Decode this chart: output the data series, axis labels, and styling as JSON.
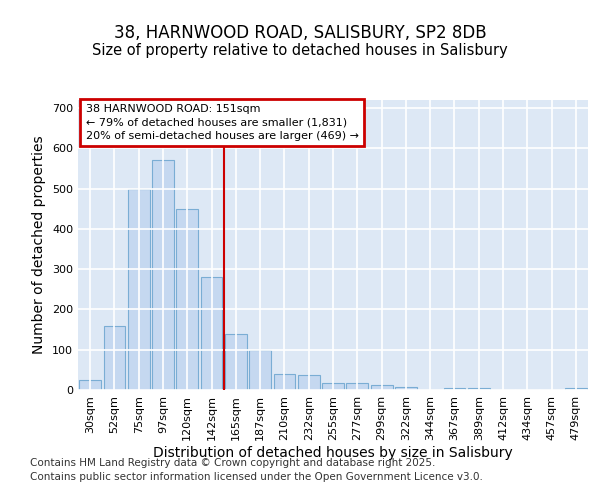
{
  "title_line1": "38, HARNWOOD ROAD, SALISBURY, SP2 8DB",
  "title_line2": "Size of property relative to detached houses in Salisbury",
  "xlabel": "Distribution of detached houses by size in Salisbury",
  "ylabel": "Number of detached properties",
  "categories": [
    "30sqm",
    "52sqm",
    "75sqm",
    "97sqm",
    "120sqm",
    "142sqm",
    "165sqm",
    "187sqm",
    "210sqm",
    "232sqm",
    "255sqm",
    "277sqm",
    "299sqm",
    "322sqm",
    "344sqm",
    "367sqm",
    "389sqm",
    "412sqm",
    "434sqm",
    "457sqm",
    "479sqm"
  ],
  "values": [
    25,
    160,
    500,
    570,
    450,
    280,
    140,
    100,
    40,
    38,
    17,
    17,
    13,
    8,
    0,
    6,
    5,
    0,
    0,
    0,
    5
  ],
  "bar_color": "#c5d8f0",
  "bar_edge_color": "#7aadd4",
  "vline_x": 5.5,
  "vline_color": "#cc0000",
  "annotation_text": "38 HARNWOOD ROAD: 151sqm\n← 79% of detached houses are smaller (1,831)\n20% of semi-detached houses are larger (469) →",
  "annotation_box_color": "#cc0000",
  "background_color": "#dde8f5",
  "grid_color": "#ffffff",
  "fig_background": "#ffffff",
  "ylim": [
    0,
    720
  ],
  "yticks": [
    0,
    100,
    200,
    300,
    400,
    500,
    600,
    700
  ],
  "footer_line1": "Contains HM Land Registry data © Crown copyright and database right 2025.",
  "footer_line2": "Contains public sector information licensed under the Open Government Licence v3.0.",
  "title_fontsize": 12,
  "subtitle_fontsize": 10.5,
  "tick_fontsize": 8,
  "label_fontsize": 10,
  "footer_fontsize": 7.5
}
